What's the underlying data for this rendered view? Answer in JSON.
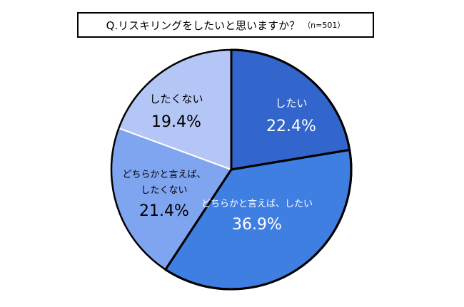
{
  "title": {
    "question": "Q.リスキリングをしたいと思いますか？",
    "sample": "（n=501）"
  },
  "chart_data": {
    "type": "pie",
    "start": "12 o'clock",
    "direction": "clockwise",
    "slices": [
      {
        "label": "したい",
        "value": 22.4,
        "value_text": "22.4%",
        "color": "#3366cc",
        "text_color": "#ffffff",
        "emphasized": true
      },
      {
        "label": "どちらかと言えば、したい",
        "value": 36.9,
        "value_text": "36.9%",
        "color": "#3f7fe2",
        "text_color": "#ffffff",
        "emphasized": true
      },
      {
        "label": "どちらかと言えば、したくない",
        "value": 21.4,
        "value_text": "21.4%",
        "color": "#7fa4f0",
        "text_color": "#000000",
        "emphasized": false
      },
      {
        "label": "したくない",
        "value": 19.4,
        "value_text": "19.4%",
        "color": "#b3c6f6",
        "text_color": "#000000",
        "emphasized": false
      }
    ]
  }
}
